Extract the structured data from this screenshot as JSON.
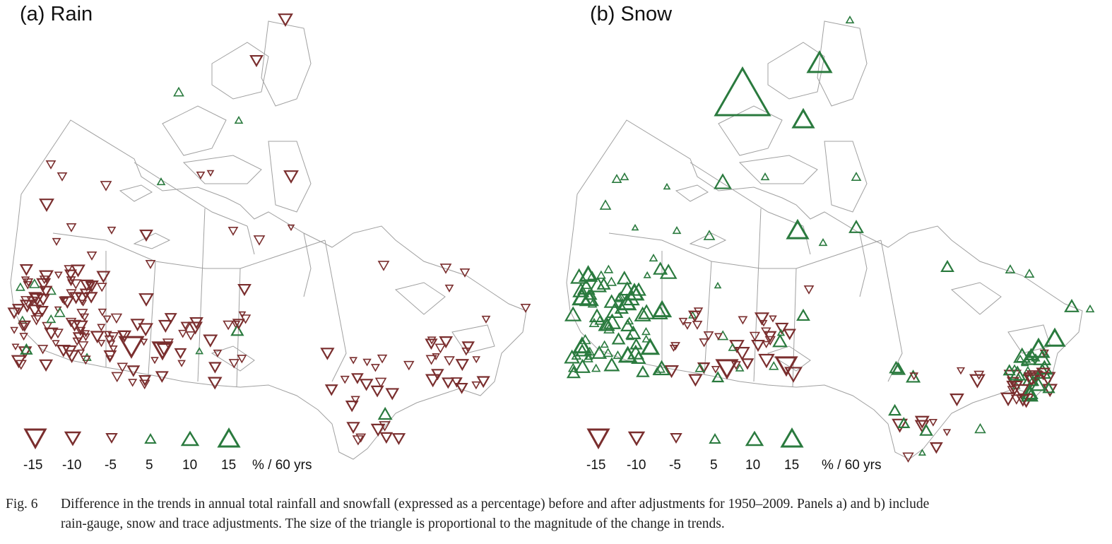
{
  "colors": {
    "decrease": "#7a2e2e",
    "increase": "#2a7a3e",
    "outline": "#9a9a9a"
  },
  "panels": [
    {
      "title": "(a)  Rain"
    },
    {
      "title": "(b)  Snow"
    }
  ],
  "legend": {
    "values": [
      "-15",
      "-10",
      "-5",
      "5",
      "10",
      "15"
    ],
    "unit": "% / 60 yrs"
  },
  "caption": {
    "label": "Fig. 6",
    "line1": "Difference in the trends in annual total rainfall and snowfall (expressed as a percentage) before and after adjustments for 1950–2009. Panels a) and b) include",
    "line2": "rain-gauge, snow and trace adjustments. The size of the triangle is proportional to the magnitude of the change in trends."
  },
  "chart_data": [
    {
      "type": "scatter",
      "title": "(a)  Rain",
      "encoding": "triangle size proportional to magnitude; downward = decrease, upward = increase",
      "legend_values": [
        -15,
        -10,
        -5,
        5,
        10,
        15
      ],
      "unit": "% / 60 yrs"
    },
    {
      "type": "scatter",
      "title": "(b)  Snow",
      "encoding": "triangle size proportional to magnitude; downward = decrease, upward = increase",
      "legend_values": [
        -15,
        -10,
        -5,
        5,
        10,
        15
      ],
      "unit": "% / 60 yrs"
    }
  ]
}
